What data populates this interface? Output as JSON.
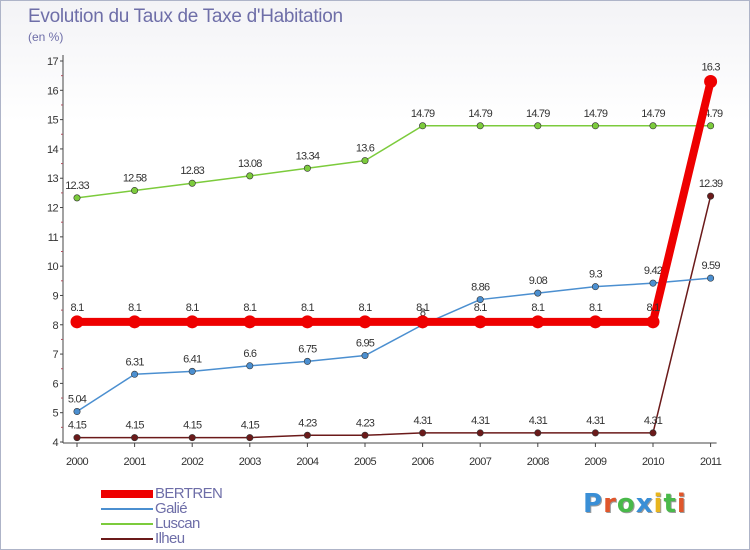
{
  "title": "Evolution du Taux de Taxe d'Habitation",
  "unit_label": "(en %)",
  "logo": {
    "text": "Proxiti",
    "colors": [
      "#3a8fd6",
      "#e0562b",
      "#49b94a",
      "#3a8fd6",
      "#e8b51e",
      "#49b94a",
      "#e0562b"
    ]
  },
  "chart_data": {
    "type": "line",
    "title": "Evolution du Taux de Taxe d'Habitation",
    "ylabel": "(en %)",
    "xlabel": "",
    "ylim": [
      4,
      17
    ],
    "yticks": [
      "4",
      "5",
      "6",
      "7",
      "8",
      "9",
      "10",
      "11",
      "12",
      "13",
      "14",
      "15",
      "16",
      "17"
    ],
    "x": [
      "2000",
      "2001",
      "2002",
      "2003",
      "2004",
      "2005",
      "2006",
      "2007",
      "2008",
      "2009",
      "2010",
      "2011"
    ],
    "grid": false,
    "legend_position": "bottom-left",
    "series": [
      {
        "name": "BERTREN",
        "color": "#ee0000",
        "values": [
          8.1,
          8.1,
          8.1,
          8.1,
          8.1,
          8.1,
          8.1,
          8.1,
          8.1,
          8.1,
          8.1,
          16.3
        ],
        "labels": [
          "8.1",
          "8.1",
          "8.1",
          "8.1",
          "8.1",
          "8.1",
          "8.1",
          "8.1",
          "8.1",
          "8.1",
          "8.1",
          "16.3"
        ]
      },
      {
        "name": "Galié",
        "color": "#4b8fd0",
        "values": [
          5.04,
          6.31,
          6.41,
          6.6,
          6.75,
          6.95,
          8.0,
          8.86,
          9.08,
          9.3,
          9.42,
          9.59
        ],
        "labels": [
          "5.04",
          "6.31",
          "6.41",
          "6.6",
          "6.75",
          "6.95",
          "8",
          "8.86",
          "9.08",
          "9.3",
          "9.42",
          "9.59"
        ]
      },
      {
        "name": "Luscan",
        "color": "#7ccb3c",
        "values": [
          12.33,
          12.58,
          12.83,
          13.08,
          13.34,
          13.6,
          14.79,
          14.79,
          14.79,
          14.79,
          14.79,
          14.79
        ],
        "labels": [
          "12.33",
          "12.58",
          "12.83",
          "13.08",
          "13.34",
          "13.6",
          "14.79",
          "14.79",
          "14.79",
          "14.79",
          "14.79",
          "14.79"
        ]
      },
      {
        "name": "Ilheu",
        "color": "#6b1a1a",
        "values": [
          4.15,
          4.15,
          4.15,
          4.15,
          4.23,
          4.23,
          4.31,
          4.31,
          4.31,
          4.31,
          4.31,
          12.39
        ],
        "labels": [
          "4.15",
          "4.15",
          "4.15",
          "4.15",
          "4.23",
          "4.23",
          "4.31",
          "4.31",
          "4.31",
          "4.31",
          "4.31",
          "12.39"
        ]
      }
    ]
  }
}
